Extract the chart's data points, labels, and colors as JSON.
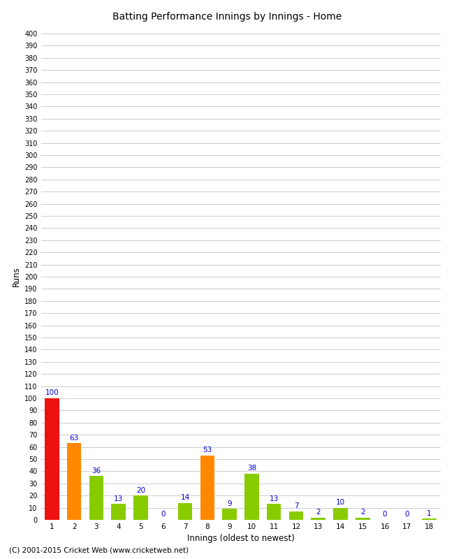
{
  "title": "",
  "xlabel": "Innings (oldest to newest)",
  "ylabel": "Runs",
  "categories": [
    1,
    2,
    3,
    4,
    5,
    6,
    7,
    8,
    9,
    10,
    11,
    12,
    13,
    14,
    15,
    16,
    17,
    18
  ],
  "values": [
    100,
    63,
    36,
    13,
    20,
    0,
    14,
    53,
    9,
    38,
    13,
    7,
    2,
    10,
    2,
    0,
    0,
    1
  ],
  "bar_colors": [
    "#ee1111",
    "#ff8800",
    "#88cc00",
    "#88cc00",
    "#88cc00",
    "#88cc00",
    "#88cc00",
    "#ff8800",
    "#88cc00",
    "#88cc00",
    "#88cc00",
    "#88cc00",
    "#88cc00",
    "#88cc00",
    "#88cc00",
    "#88cc00",
    "#88cc00",
    "#88cc00"
  ],
  "ylim": [
    0,
    400
  ],
  "label_color": "#0000cc",
  "background_color": "#ffffff",
  "grid_color": "#cccccc",
  "footer": "(C) 2001-2015 Cricket Web (www.cricketweb.net)",
  "title_text": "Batting Performance Innings by Innings - Home"
}
